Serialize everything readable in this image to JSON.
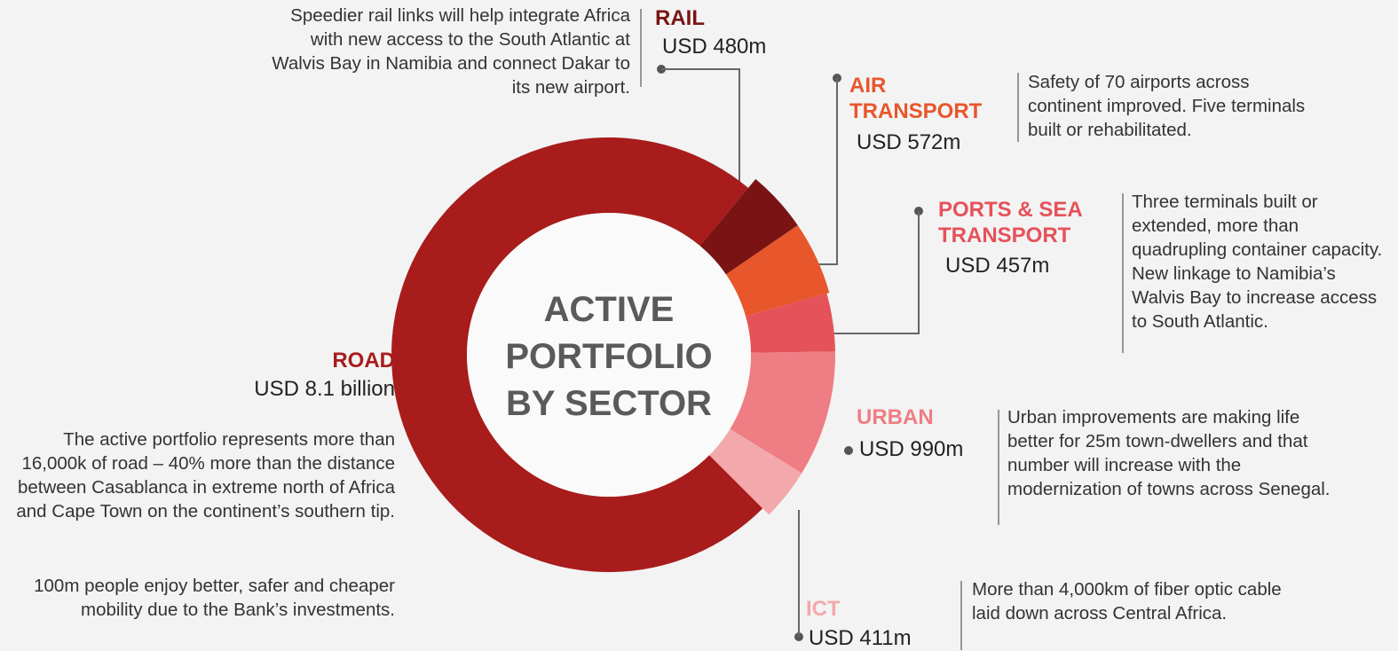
{
  "chart_data": {
    "type": "donut",
    "center_label": [
      "ACTIVE",
      "PORTFOLIO",
      "BY SECTOR"
    ],
    "categories": [
      "ROAD",
      "RAIL",
      "AIR TRANSPORT",
      "PORTS & SEA TRANSPORT",
      "URBAN",
      "ICT"
    ],
    "values": [
      8100,
      480,
      572,
      457,
      990,
      411
    ],
    "value_labels": [
      "USD 8.1 billion",
      "USD 480m",
      "USD 572m",
      "USD 457m",
      "USD 990m",
      "USD 411m"
    ],
    "colors": [
      "#a81c1c",
      "#7a1414",
      "#e8562c",
      "#e6525a",
      "#ef7d84",
      "#f3a8ab"
    ],
    "descriptions": [
      [
        "The active portfolio represents more than 16,000k of road – 40% more than the distance between Casablanca in extreme north of Africa and Cape Town on the continent’s southern tip.",
        "100m people enjoy better, safer and cheaper mobility due to the Bank’s investments."
      ],
      [
        "Speedier rail links will help integrate Africa with new access to the South Atlantic at Walvis Bay in Namibia and connect Dakar to its new airport."
      ],
      [
        "Safety of 70 airports across continent improved.  Five terminals built or rehabilitated."
      ],
      [
        "Three terminals built or extended, more than quadrupling container capacity. New linkage to Namibia’s Walvis Bay to increase access to South Atlantic."
      ],
      [
        "Urban improvements are making life better for 25m town-dwellers and that number will increase with the modernization of towns across Senegal."
      ],
      [
        "More than 4,000km of fiber optic cable laid down across Central Africa."
      ]
    ]
  }
}
